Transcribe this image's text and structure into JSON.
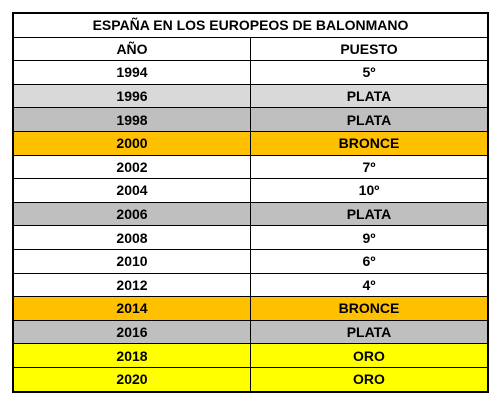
{
  "table": {
    "title": "ESPAÑA EN LOS EUROPEOS DE BALONMANO",
    "header": [
      "AÑO",
      "PUESTO"
    ],
    "rows": [
      [
        "1994",
        "5º"
      ],
      [
        "1996",
        "PLATA"
      ],
      [
        "1998",
        "PLATA"
      ],
      [
        "2000",
        "BRONCE"
      ],
      [
        "2002",
        "7º"
      ],
      [
        "2004",
        "10º"
      ],
      [
        "2006",
        "PLATA"
      ],
      [
        "2008",
        "9º"
      ],
      [
        "2010",
        "6º"
      ],
      [
        "2012",
        "4º"
      ],
      [
        "2014",
        "BRONCE"
      ],
      [
        "2016",
        "PLATA"
      ],
      [
        "2018",
        "ORO"
      ],
      [
        "2020",
        "ORO"
      ]
    ]
  }
}
